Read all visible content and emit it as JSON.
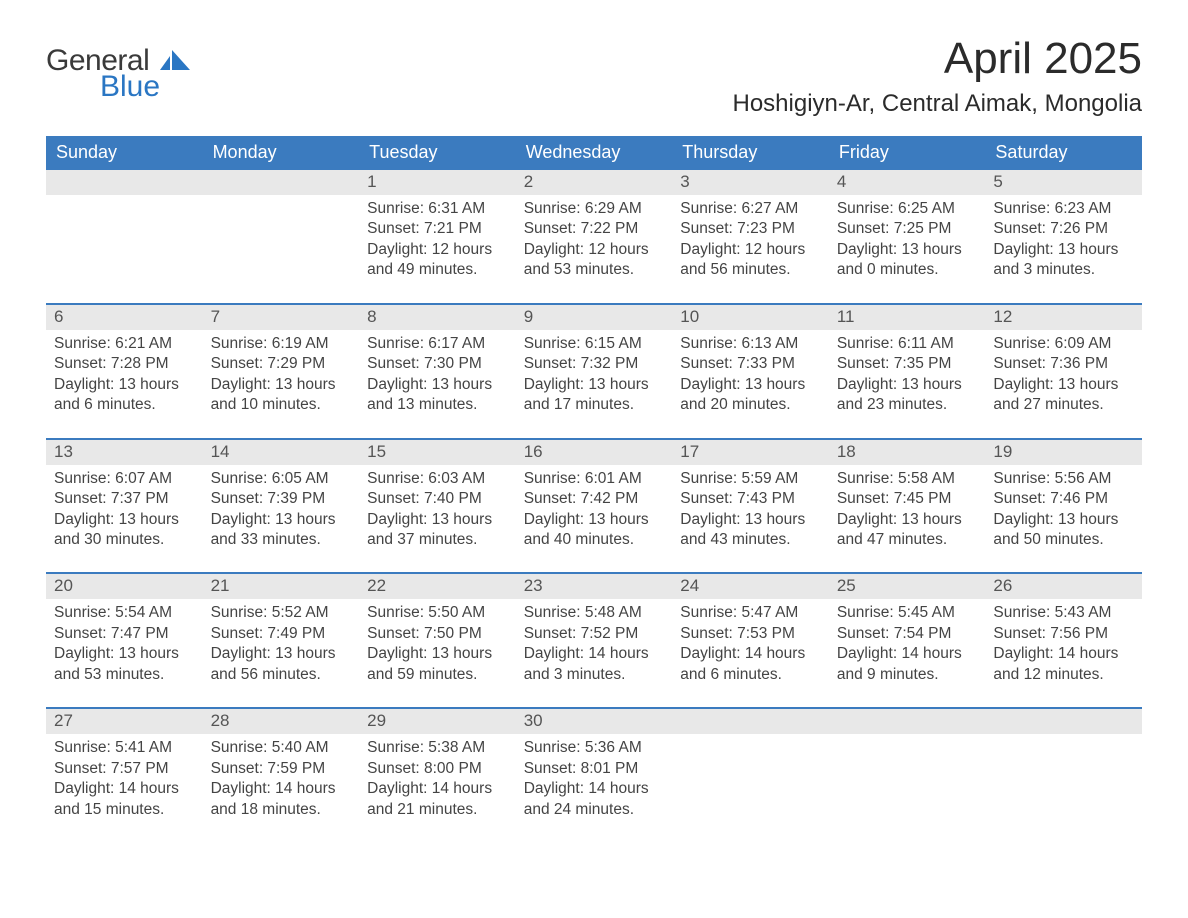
{
  "logo": {
    "general": "General",
    "blue": "Blue"
  },
  "title": "April 2025",
  "location": "Hoshigiyn-Ar, Central Aimak, Mongolia",
  "weekdays": [
    "Sunday",
    "Monday",
    "Tuesday",
    "Wednesday",
    "Thursday",
    "Friday",
    "Saturday"
  ],
  "colors": {
    "header_blue": "#3b7bbf",
    "daynum_bg": "#e8e8e8",
    "text": "#333333",
    "border_blue": "#3b7bbf",
    "logo_blue": "#2a76c3"
  },
  "weeks": [
    {
      "days": [
        null,
        null,
        {
          "n": "1",
          "sunrise": "Sunrise: 6:31 AM",
          "sunset": "Sunset: 7:21 PM",
          "day1": "Daylight: 12 hours",
          "day2": "and 49 minutes."
        },
        {
          "n": "2",
          "sunrise": "Sunrise: 6:29 AM",
          "sunset": "Sunset: 7:22 PM",
          "day1": "Daylight: 12 hours",
          "day2": "and 53 minutes."
        },
        {
          "n": "3",
          "sunrise": "Sunrise: 6:27 AM",
          "sunset": "Sunset: 7:23 PM",
          "day1": "Daylight: 12 hours",
          "day2": "and 56 minutes."
        },
        {
          "n": "4",
          "sunrise": "Sunrise: 6:25 AM",
          "sunset": "Sunset: 7:25 PM",
          "day1": "Daylight: 13 hours",
          "day2": "and 0 minutes."
        },
        {
          "n": "5",
          "sunrise": "Sunrise: 6:23 AM",
          "sunset": "Sunset: 7:26 PM",
          "day1": "Daylight: 13 hours",
          "day2": "and 3 minutes."
        }
      ]
    },
    {
      "days": [
        {
          "n": "6",
          "sunrise": "Sunrise: 6:21 AM",
          "sunset": "Sunset: 7:28 PM",
          "day1": "Daylight: 13 hours",
          "day2": "and 6 minutes."
        },
        {
          "n": "7",
          "sunrise": "Sunrise: 6:19 AM",
          "sunset": "Sunset: 7:29 PM",
          "day1": "Daylight: 13 hours",
          "day2": "and 10 minutes."
        },
        {
          "n": "8",
          "sunrise": "Sunrise: 6:17 AM",
          "sunset": "Sunset: 7:30 PM",
          "day1": "Daylight: 13 hours",
          "day2": "and 13 minutes."
        },
        {
          "n": "9",
          "sunrise": "Sunrise: 6:15 AM",
          "sunset": "Sunset: 7:32 PM",
          "day1": "Daylight: 13 hours",
          "day2": "and 17 minutes."
        },
        {
          "n": "10",
          "sunrise": "Sunrise: 6:13 AM",
          "sunset": "Sunset: 7:33 PM",
          "day1": "Daylight: 13 hours",
          "day2": "and 20 minutes."
        },
        {
          "n": "11",
          "sunrise": "Sunrise: 6:11 AM",
          "sunset": "Sunset: 7:35 PM",
          "day1": "Daylight: 13 hours",
          "day2": "and 23 minutes."
        },
        {
          "n": "12",
          "sunrise": "Sunrise: 6:09 AM",
          "sunset": "Sunset: 7:36 PM",
          "day1": "Daylight: 13 hours",
          "day2": "and 27 minutes."
        }
      ]
    },
    {
      "days": [
        {
          "n": "13",
          "sunrise": "Sunrise: 6:07 AM",
          "sunset": "Sunset: 7:37 PM",
          "day1": "Daylight: 13 hours",
          "day2": "and 30 minutes."
        },
        {
          "n": "14",
          "sunrise": "Sunrise: 6:05 AM",
          "sunset": "Sunset: 7:39 PM",
          "day1": "Daylight: 13 hours",
          "day2": "and 33 minutes."
        },
        {
          "n": "15",
          "sunrise": "Sunrise: 6:03 AM",
          "sunset": "Sunset: 7:40 PM",
          "day1": "Daylight: 13 hours",
          "day2": "and 37 minutes."
        },
        {
          "n": "16",
          "sunrise": "Sunrise: 6:01 AM",
          "sunset": "Sunset: 7:42 PM",
          "day1": "Daylight: 13 hours",
          "day2": "and 40 minutes."
        },
        {
          "n": "17",
          "sunrise": "Sunrise: 5:59 AM",
          "sunset": "Sunset: 7:43 PM",
          "day1": "Daylight: 13 hours",
          "day2": "and 43 minutes."
        },
        {
          "n": "18",
          "sunrise": "Sunrise: 5:58 AM",
          "sunset": "Sunset: 7:45 PM",
          "day1": "Daylight: 13 hours",
          "day2": "and 47 minutes."
        },
        {
          "n": "19",
          "sunrise": "Sunrise: 5:56 AM",
          "sunset": "Sunset: 7:46 PM",
          "day1": "Daylight: 13 hours",
          "day2": "and 50 minutes."
        }
      ]
    },
    {
      "days": [
        {
          "n": "20",
          "sunrise": "Sunrise: 5:54 AM",
          "sunset": "Sunset: 7:47 PM",
          "day1": "Daylight: 13 hours",
          "day2": "and 53 minutes."
        },
        {
          "n": "21",
          "sunrise": "Sunrise: 5:52 AM",
          "sunset": "Sunset: 7:49 PM",
          "day1": "Daylight: 13 hours",
          "day2": "and 56 minutes."
        },
        {
          "n": "22",
          "sunrise": "Sunrise: 5:50 AM",
          "sunset": "Sunset: 7:50 PM",
          "day1": "Daylight: 13 hours",
          "day2": "and 59 minutes."
        },
        {
          "n": "23",
          "sunrise": "Sunrise: 5:48 AM",
          "sunset": "Sunset: 7:52 PM",
          "day1": "Daylight: 14 hours",
          "day2": "and 3 minutes."
        },
        {
          "n": "24",
          "sunrise": "Sunrise: 5:47 AM",
          "sunset": "Sunset: 7:53 PM",
          "day1": "Daylight: 14 hours",
          "day2": "and 6 minutes."
        },
        {
          "n": "25",
          "sunrise": "Sunrise: 5:45 AM",
          "sunset": "Sunset: 7:54 PM",
          "day1": "Daylight: 14 hours",
          "day2": "and 9 minutes."
        },
        {
          "n": "26",
          "sunrise": "Sunrise: 5:43 AM",
          "sunset": "Sunset: 7:56 PM",
          "day1": "Daylight: 14 hours",
          "day2": "and 12 minutes."
        }
      ]
    },
    {
      "days": [
        {
          "n": "27",
          "sunrise": "Sunrise: 5:41 AM",
          "sunset": "Sunset: 7:57 PM",
          "day1": "Daylight: 14 hours",
          "day2": "and 15 minutes."
        },
        {
          "n": "28",
          "sunrise": "Sunrise: 5:40 AM",
          "sunset": "Sunset: 7:59 PM",
          "day1": "Daylight: 14 hours",
          "day2": "and 18 minutes."
        },
        {
          "n": "29",
          "sunrise": "Sunrise: 5:38 AM",
          "sunset": "Sunset: 8:00 PM",
          "day1": "Daylight: 14 hours",
          "day2": "and 21 minutes."
        },
        {
          "n": "30",
          "sunrise": "Sunrise: 5:36 AM",
          "sunset": "Sunset: 8:01 PM",
          "day1": "Daylight: 14 hours",
          "day2": "and 24 minutes."
        },
        null,
        null,
        null
      ]
    }
  ]
}
